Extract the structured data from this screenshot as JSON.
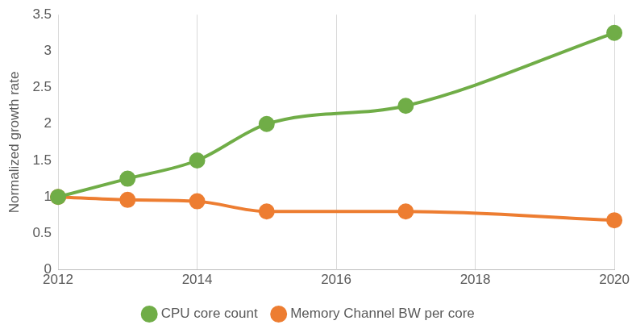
{
  "chart_data": {
    "type": "line",
    "y_label": "Normalized growth rate",
    "x": [
      2012,
      2013,
      2014,
      2015,
      2017,
      2020
    ],
    "series": [
      {
        "name": "CPU core count",
        "color": "#70ad47",
        "marker": "circle",
        "line_style": "solid",
        "values": [
          1,
          1.25,
          1.5,
          2,
          2.25,
          3.25
        ]
      },
      {
        "name": "Memory Channel BW per core",
        "color": "#ed7d31",
        "marker": "circle",
        "line_style": "solid",
        "values": [
          1,
          0.96,
          0.94,
          0.8,
          0.8,
          0.68
        ]
      }
    ],
    "xlim": [
      2012,
      2020
    ],
    "xticks": [
      2012,
      2014,
      2016,
      2018,
      2020
    ],
    "ylim": [
      0,
      3.5
    ],
    "yticks": [
      0,
      0.5,
      1,
      1.5,
      2,
      2.5,
      3,
      3.5
    ],
    "grid": "x",
    "legend": "bottom"
  }
}
